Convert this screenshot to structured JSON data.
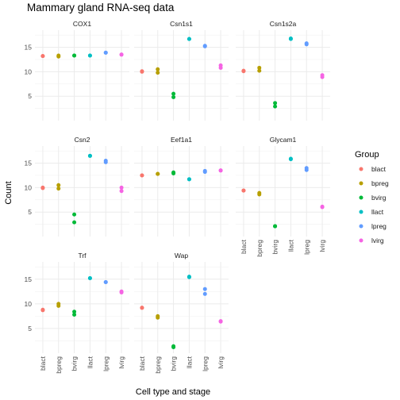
{
  "chart_data": {
    "type": "scatter",
    "title": "Mammary gland RNA-seq data",
    "xlabel": "Cell type and stage",
    "ylabel": "Count",
    "categories": [
      "blact",
      "bpreg",
      "bvirg",
      "llact",
      "lpreg",
      "lvirg"
    ],
    "ylim": [
      0,
      18.5
    ],
    "yticks": [
      5,
      10,
      15
    ],
    "grid": true,
    "legend": {
      "title": "Group",
      "position": "right",
      "entries": [
        "blact",
        "bpreg",
        "bvirg",
        "llact",
        "lpreg",
        "lvirg"
      ],
      "colors": [
        "#F8766D",
        "#B79F00",
        "#00BA38",
        "#00BFC4",
        "#619CFF",
        "#F564E3"
      ]
    },
    "facets": [
      {
        "name": "COX1",
        "points": [
          {
            "group": "blact",
            "x": "blact",
            "y": 13.2
          },
          {
            "group": "blact",
            "x": "blact",
            "y": 13.2
          },
          {
            "group": "bpreg",
            "x": "bpreg",
            "y": 13.1
          },
          {
            "group": "bpreg",
            "x": "bpreg",
            "y": 13.3
          },
          {
            "group": "bvirg",
            "x": "bvirg",
            "y": 13.3
          },
          {
            "group": "bvirg",
            "x": "bvirg",
            "y": 13.3
          },
          {
            "group": "llact",
            "x": "llact",
            "y": 13.3
          },
          {
            "group": "llact",
            "x": "llact",
            "y": 13.3
          },
          {
            "group": "lpreg",
            "x": "lpreg",
            "y": 13.9
          },
          {
            "group": "lpreg",
            "x": "lpreg",
            "y": 13.9
          },
          {
            "group": "lvirg",
            "x": "lvirg",
            "y": 13.5
          },
          {
            "group": "lvirg",
            "x": "lvirg",
            "y": 13.5
          }
        ]
      },
      {
        "name": "Csn1s1",
        "points": [
          {
            "group": "blact",
            "x": "blact",
            "y": 10.0
          },
          {
            "group": "blact",
            "x": "blact",
            "y": 10.1
          },
          {
            "group": "bpreg",
            "x": "bpreg",
            "y": 10.5
          },
          {
            "group": "bpreg",
            "x": "bpreg",
            "y": 9.8
          },
          {
            "group": "bvirg",
            "x": "bvirg",
            "y": 5.5
          },
          {
            "group": "bvirg",
            "x": "bvirg",
            "y": 4.8
          },
          {
            "group": "llact",
            "x": "llact",
            "y": 16.7
          },
          {
            "group": "llact",
            "x": "llact",
            "y": 16.7
          },
          {
            "group": "lpreg",
            "x": "lpreg",
            "y": 15.3
          },
          {
            "group": "lpreg",
            "x": "lpreg",
            "y": 15.2
          },
          {
            "group": "lvirg",
            "x": "lvirg",
            "y": 10.8
          },
          {
            "group": "lvirg",
            "x": "lvirg",
            "y": 11.3
          }
        ]
      },
      {
        "name": "Csn1s2a",
        "points": [
          {
            "group": "blact",
            "x": "blact",
            "y": 10.1
          },
          {
            "group": "blact",
            "x": "blact",
            "y": 10.2
          },
          {
            "group": "bpreg",
            "x": "bpreg",
            "y": 10.8
          },
          {
            "group": "bpreg",
            "x": "bpreg",
            "y": 10.2
          },
          {
            "group": "bvirg",
            "x": "bvirg",
            "y": 3.6
          },
          {
            "group": "bvirg",
            "x": "bvirg",
            "y": 2.9
          },
          {
            "group": "llact",
            "x": "llact",
            "y": 16.8
          },
          {
            "group": "llact",
            "x": "llact",
            "y": 16.7
          },
          {
            "group": "lpreg",
            "x": "lpreg",
            "y": 15.6
          },
          {
            "group": "lpreg",
            "x": "lpreg",
            "y": 15.8
          },
          {
            "group": "lvirg",
            "x": "lvirg",
            "y": 8.9
          },
          {
            "group": "lvirg",
            "x": "lvirg",
            "y": 9.3
          }
        ]
      },
      {
        "name": "Csn2",
        "points": [
          {
            "group": "blact",
            "x": "blact",
            "y": 9.9
          },
          {
            "group": "blact",
            "x": "blact",
            "y": 10.0
          },
          {
            "group": "bpreg",
            "x": "bpreg",
            "y": 10.5
          },
          {
            "group": "bpreg",
            "x": "bpreg",
            "y": 9.8
          },
          {
            "group": "bvirg",
            "x": "bvirg",
            "y": 4.5
          },
          {
            "group": "bvirg",
            "x": "bvirg",
            "y": 2.9
          },
          {
            "group": "llact",
            "x": "llact",
            "y": 16.5
          },
          {
            "group": "llact",
            "x": "llact",
            "y": 16.5
          },
          {
            "group": "lpreg",
            "x": "lpreg",
            "y": 15.5
          },
          {
            "group": "lpreg",
            "x": "lpreg",
            "y": 15.2
          },
          {
            "group": "lvirg",
            "x": "lvirg",
            "y": 9.3
          },
          {
            "group": "lvirg",
            "x": "lvirg",
            "y": 10.0
          }
        ]
      },
      {
        "name": "Eef1a1",
        "points": [
          {
            "group": "blact",
            "x": "blact",
            "y": 12.5
          },
          {
            "group": "blact",
            "x": "blact",
            "y": 12.5
          },
          {
            "group": "bpreg",
            "x": "bpreg",
            "y": 12.8
          },
          {
            "group": "bpreg",
            "x": "bpreg",
            "y": 12.8
          },
          {
            "group": "bvirg",
            "x": "bvirg",
            "y": 13.1
          },
          {
            "group": "bvirg",
            "x": "bvirg",
            "y": 12.9
          },
          {
            "group": "llact",
            "x": "llact",
            "y": 11.7
          },
          {
            "group": "llact",
            "x": "llact",
            "y": 11.7
          },
          {
            "group": "lpreg",
            "x": "lpreg",
            "y": 13.2
          },
          {
            "group": "lpreg",
            "x": "lpreg",
            "y": 13.4
          },
          {
            "group": "lvirg",
            "x": "lvirg",
            "y": 13.5
          },
          {
            "group": "lvirg",
            "x": "lvirg",
            "y": 13.5
          }
        ]
      },
      {
        "name": "Glycam1",
        "points": [
          {
            "group": "blact",
            "x": "blact",
            "y": 9.4
          },
          {
            "group": "blact",
            "x": "blact",
            "y": 9.4
          },
          {
            "group": "bpreg",
            "x": "bpreg",
            "y": 8.9
          },
          {
            "group": "bpreg",
            "x": "bpreg",
            "y": 8.6
          },
          {
            "group": "bvirg",
            "x": "bvirg",
            "y": 2.1
          },
          {
            "group": "bvirg",
            "x": "bvirg",
            "y": 2.1
          },
          {
            "group": "llact",
            "x": "llact",
            "y": 15.9
          },
          {
            "group": "llact",
            "x": "llact",
            "y": 15.8
          },
          {
            "group": "lpreg",
            "x": "lpreg",
            "y": 14.0
          },
          {
            "group": "lpreg",
            "x": "lpreg",
            "y": 13.6
          },
          {
            "group": "lvirg",
            "x": "lvirg",
            "y": 6.0
          },
          {
            "group": "lvirg",
            "x": "lvirg",
            "y": 6.1
          }
        ]
      },
      {
        "name": "Trf",
        "points": [
          {
            "group": "blact",
            "x": "blact",
            "y": 8.8
          },
          {
            "group": "blact",
            "x": "blact",
            "y": 8.7
          },
          {
            "group": "bpreg",
            "x": "bpreg",
            "y": 10.0
          },
          {
            "group": "bpreg",
            "x": "bpreg",
            "y": 9.6
          },
          {
            "group": "bvirg",
            "x": "bvirg",
            "y": 8.4
          },
          {
            "group": "bvirg",
            "x": "bvirg",
            "y": 7.8
          },
          {
            "group": "llact",
            "x": "llact",
            "y": 15.2
          },
          {
            "group": "llact",
            "x": "llact",
            "y": 15.2
          },
          {
            "group": "lpreg",
            "x": "lpreg",
            "y": 14.4
          },
          {
            "group": "lpreg",
            "x": "lpreg",
            "y": 14.4
          },
          {
            "group": "lvirg",
            "x": "lvirg",
            "y": 12.5
          },
          {
            "group": "lvirg",
            "x": "lvirg",
            "y": 12.3
          }
        ]
      },
      {
        "name": "Wap",
        "points": [
          {
            "group": "blact",
            "x": "blact",
            "y": 9.2
          },
          {
            "group": "blact",
            "x": "blact",
            "y": 9.2
          },
          {
            "group": "bpreg",
            "x": "bpreg",
            "y": 7.5
          },
          {
            "group": "bpreg",
            "x": "bpreg",
            "y": 7.2
          },
          {
            "group": "bvirg",
            "x": "bvirg",
            "y": 1.4
          },
          {
            "group": "bvirg",
            "x": "bvirg",
            "y": 1.2
          },
          {
            "group": "llact",
            "x": "llact",
            "y": 15.5
          },
          {
            "group": "llact",
            "x": "llact",
            "y": 15.4
          },
          {
            "group": "lpreg",
            "x": "lpreg",
            "y": 13.0
          },
          {
            "group": "lpreg",
            "x": "lpreg",
            "y": 12.0
          },
          {
            "group": "lvirg",
            "x": "lvirg",
            "y": 6.4
          },
          {
            "group": "lvirg",
            "x": "lvirg",
            "y": 6.5
          }
        ]
      }
    ]
  }
}
